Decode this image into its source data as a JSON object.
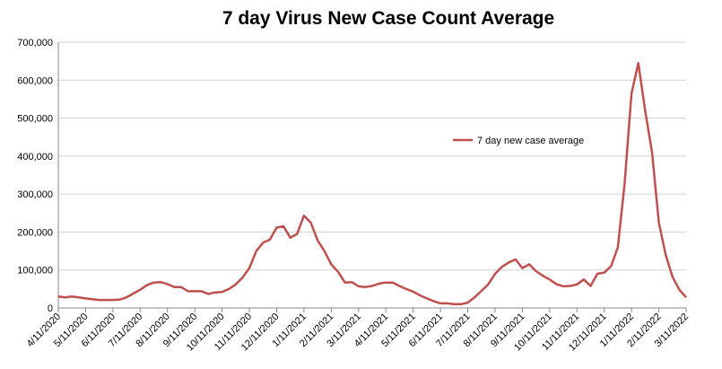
{
  "chart_data": {
    "type": "line",
    "title": "7 day Virus New Case Count Average",
    "categories": [
      "4/11/2020",
      null,
      null,
      null,
      "5/11/2020",
      null,
      null,
      null,
      "6/11/2020",
      null,
      null,
      null,
      "7/11/2020",
      null,
      null,
      null,
      "8/11/2020",
      null,
      null,
      null,
      "9/11/2020",
      null,
      null,
      null,
      "10/11/2020",
      null,
      null,
      null,
      "11/11/2020",
      null,
      null,
      null,
      "12/11/2020",
      null,
      null,
      null,
      "1/11/2021",
      null,
      null,
      null,
      "2/11/2021",
      null,
      null,
      null,
      "3/11/2021",
      null,
      null,
      null,
      "4/11/2021",
      null,
      null,
      null,
      "5/11/2021",
      null,
      null,
      null,
      "6/11/2021",
      null,
      null,
      null,
      "7/11/2021",
      null,
      null,
      null,
      "8/11/2021",
      null,
      null,
      null,
      "9/11/2021",
      null,
      null,
      null,
      "10/11/2021",
      null,
      null,
      null,
      "11/11/2021",
      null,
      null,
      null,
      "12/11/2021",
      null,
      null,
      null,
      "1/11/2022",
      null,
      null,
      null,
      "2/11/2022",
      null,
      null,
      null,
      "3/11/2022"
    ],
    "series": [
      {
        "name": "7 day new case average",
        "color": "#c0504d",
        "values": [
          30000,
          28000,
          30000,
          28000,
          25000,
          23000,
          21000,
          21000,
          21000,
          22000,
          28000,
          38000,
          48000,
          60000,
          67000,
          68000,
          63000,
          55000,
          55000,
          44000,
          44000,
          44000,
          37000,
          41000,
          42000,
          50000,
          62000,
          80000,
          105000,
          150000,
          172000,
          180000,
          212000,
          215000,
          185000,
          195000,
          243000,
          225000,
          178000,
          150000,
          115000,
          95000,
          67000,
          68000,
          57000,
          55000,
          58000,
          64000,
          67000,
          67000,
          58000,
          50000,
          43000,
          33000,
          25000,
          18000,
          12000,
          12000,
          10000,
          10000,
          14000,
          28000,
          45000,
          62000,
          90000,
          108000,
          120000,
          128000,
          105000,
          115000,
          97000,
          85000,
          75000,
          63000,
          57000,
          58000,
          62000,
          75000,
          58000,
          90000,
          93000,
          110000,
          160000,
          330000,
          565000,
          645000,
          520000,
          410000,
          225000,
          140000,
          82000,
          48000,
          28000
        ]
      }
    ],
    "ylim": [
      0,
      700000
    ],
    "yticks": [
      0,
      {
        "value": 100000,
        "label": "100,000"
      },
      {
        "value": 200000,
        "label": "200,000"
      },
      {
        "value": 300000,
        "label": "300,000"
      },
      {
        "value": 400000,
        "label": "400,000"
      },
      {
        "value": 500000,
        "label": "500,000"
      },
      {
        "value": 600000,
        "label": "600,000"
      },
      {
        "value": 700000,
        "label": "700,000"
      }
    ],
    "grid": true
  }
}
